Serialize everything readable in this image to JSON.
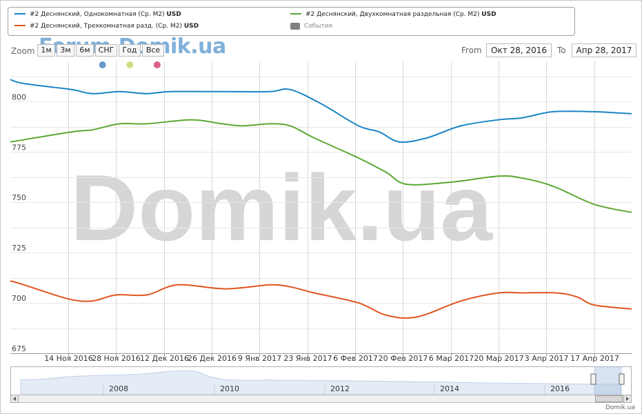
{
  "legend": [
    {
      "label": "#2 Деснянский, Однокомнатная (Ср. М2)",
      "unit": "USD",
      "color": "#1a84c4"
    },
    {
      "label": "#2 Деснянский, Двухкомнатная раздельная (Ср. М2)",
      "unit": "USD",
      "color": "#5aa832"
    },
    {
      "label": "#2 Деснянский, Трехкомнатная разд. (Ср. М2)",
      "unit": "USD",
      "color": "#e0541e"
    },
    {
      "label": "События",
      "unit": "",
      "color": "#808080"
    }
  ],
  "range_selector": {
    "zoom_label": "Zoom",
    "buttons": [
      "1м",
      "3м",
      "6м",
      "СНГ",
      "Год",
      "Все"
    ],
    "from_label": "From",
    "from_value": "Окт 28, 2016",
    "to_label": "To",
    "to_value": "Апр 28, 2017"
  },
  "watermark": {
    "big": "Domik.ua",
    "small": "Forum.Domik.ua"
  },
  "credit": "Domik.ua",
  "event_markers": [
    {
      "x": "2016-11-24",
      "color": "#6699cc"
    },
    {
      "x": "2016-12-02",
      "color": "#d0dc80"
    },
    {
      "x": "2016-12-10",
      "color": "#d86088"
    }
  ],
  "navigator": {
    "labels": [
      "2008",
      "2010",
      "2012",
      "2014",
      "2016"
    ]
  },
  "chart_data": {
    "type": "line",
    "title": "",
    "xlabel": "",
    "ylabel": "",
    "ylim": [
      675,
      820
    ],
    "xlim": [
      "2016-10-28",
      "2017-04-28"
    ],
    "y_ticks": [
      675,
      700,
      725,
      750,
      775,
      800
    ],
    "x_ticks": [
      {
        "date": "2016-11-14",
        "label": "14 Ноя 2016"
      },
      {
        "date": "2016-11-28",
        "label": "28 Ноя 2016"
      },
      {
        "date": "2016-12-12",
        "label": "12 Дек 2016"
      },
      {
        "date": "2016-12-26",
        "label": "26 Дек 2016"
      },
      {
        "date": "2017-01-09",
        "label": "9 Янв 2017"
      },
      {
        "date": "2017-01-23",
        "label": "23 Янв 2017"
      },
      {
        "date": "2017-02-06",
        "label": "6 Фев 2017"
      },
      {
        "date": "2017-02-20",
        "label": "20 Фев 2017"
      },
      {
        "date": "2017-03-06",
        "label": "6 Мар 2017"
      },
      {
        "date": "2017-03-20",
        "label": "20 Мар 2017"
      },
      {
        "date": "2017-04-03",
        "label": "3 Апр 2017"
      },
      {
        "date": "2017-04-17",
        "label": "17 Апр 2017"
      }
    ],
    "grid": true,
    "series": [
      {
        "name": "#2 Деснянский, Однокомнатная (Ср. М2) USD",
        "color": "#1a84c4",
        "points": [
          [
            "2016-10-28",
            811
          ],
          [
            "2016-11-01",
            809
          ],
          [
            "2016-11-15",
            806
          ],
          [
            "2016-11-21",
            804
          ],
          [
            "2016-11-29",
            805
          ],
          [
            "2016-12-07",
            804
          ],
          [
            "2016-12-14",
            805
          ],
          [
            "2016-12-30",
            805
          ],
          [
            "2017-01-12",
            805
          ],
          [
            "2017-01-18",
            806
          ],
          [
            "2017-01-27",
            799
          ],
          [
            "2017-02-07",
            788
          ],
          [
            "2017-02-13",
            785
          ],
          [
            "2017-02-19",
            780
          ],
          [
            "2017-02-27",
            782
          ],
          [
            "2017-03-09",
            788
          ],
          [
            "2017-03-20",
            791
          ],
          [
            "2017-03-27",
            792
          ],
          [
            "2017-04-05",
            795
          ],
          [
            "2017-04-17",
            795
          ],
          [
            "2017-04-28",
            794
          ]
        ]
      },
      {
        "name": "#2 Деснянский, Двухкомнатная раздельная (Ср. М2) USD",
        "color": "#5aa832",
        "points": [
          [
            "2016-10-28",
            780
          ],
          [
            "2016-11-15",
            785
          ],
          [
            "2016-11-21",
            786
          ],
          [
            "2016-11-29",
            789
          ],
          [
            "2016-12-07",
            789
          ],
          [
            "2016-12-20",
            791
          ],
          [
            "2016-12-29",
            789
          ],
          [
            "2017-01-04",
            788
          ],
          [
            "2017-01-12",
            789
          ],
          [
            "2017-01-18",
            788
          ],
          [
            "2017-01-25",
            782
          ],
          [
            "2017-02-07",
            772
          ],
          [
            "2017-02-15",
            765
          ],
          [
            "2017-02-21",
            759
          ],
          [
            "2017-03-06",
            760
          ],
          [
            "2017-03-20",
            763
          ],
          [
            "2017-03-27",
            762
          ],
          [
            "2017-04-05",
            758
          ],
          [
            "2017-04-17",
            749
          ],
          [
            "2017-04-28",
            745
          ]
        ]
      },
      {
        "name": "#2 Деснянский, Трехкомнатная разд. (Ср. М2) USD",
        "color": "#e0541e",
        "points": [
          [
            "2016-10-28",
            711
          ],
          [
            "2016-11-01",
            709
          ],
          [
            "2016-11-14",
            702
          ],
          [
            "2016-11-21",
            701
          ],
          [
            "2016-11-28",
            704
          ],
          [
            "2016-12-07",
            704
          ],
          [
            "2016-12-16",
            709
          ],
          [
            "2016-12-30",
            707
          ],
          [
            "2017-01-12",
            709
          ],
          [
            "2017-01-18",
            708
          ],
          [
            "2017-01-25",
            705
          ],
          [
            "2017-02-07",
            700
          ],
          [
            "2017-02-15",
            694
          ],
          [
            "2017-02-24",
            693
          ],
          [
            "2017-03-09",
            701
          ],
          [
            "2017-03-20",
            705
          ],
          [
            "2017-03-27",
            705
          ],
          [
            "2017-04-06",
            705
          ],
          [
            "2017-04-12",
            703
          ],
          [
            "2017-04-17",
            699
          ],
          [
            "2017-04-28",
            697
          ]
        ]
      }
    ]
  }
}
